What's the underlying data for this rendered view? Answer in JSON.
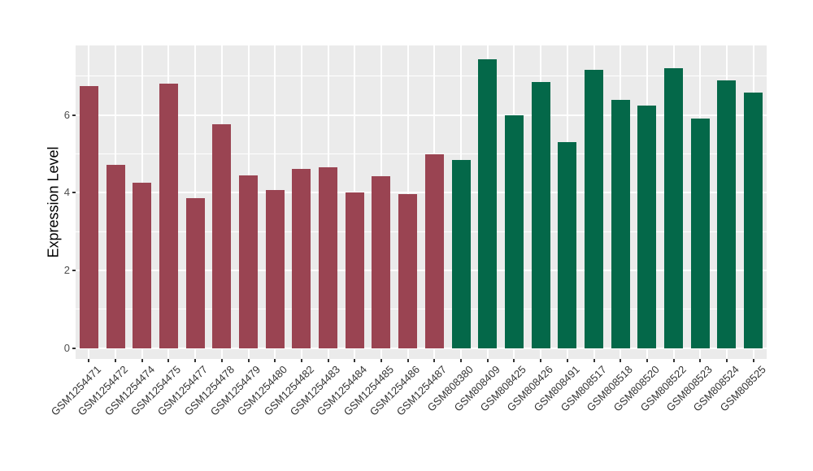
{
  "figure": {
    "background": "#FFFFFF",
    "panel_background": "#EBEBEB",
    "grid_color": "#FFFFFF"
  },
  "chart_data": {
    "type": "bar",
    "title": "",
    "xlabel": "",
    "ylabel": "Expression Level",
    "ylim": [
      0,
      7.8
    ],
    "yticks_major": [
      0,
      2,
      4,
      6
    ],
    "yticks_minor": [
      1,
      3,
      5,
      7
    ],
    "grid": "on",
    "legend": "none",
    "x_label_angle_deg": 45,
    "group_colors": {
      "maroon": "#9A4452",
      "green": "#046849"
    },
    "bars": [
      {
        "label": "GSM1254471",
        "value": 6.74,
        "group": "maroon"
      },
      {
        "label": "GSM1254472",
        "value": 4.72,
        "group": "maroon"
      },
      {
        "label": "GSM1254474",
        "value": 4.25,
        "group": "maroon"
      },
      {
        "label": "GSM1254475",
        "value": 6.82,
        "group": "maroon"
      },
      {
        "label": "GSM1254477",
        "value": 3.87,
        "group": "maroon"
      },
      {
        "label": "GSM1254478",
        "value": 5.76,
        "group": "maroon"
      },
      {
        "label": "GSM1254479",
        "value": 4.44,
        "group": "maroon"
      },
      {
        "label": "GSM1254480",
        "value": 4.06,
        "group": "maroon"
      },
      {
        "label": "GSM1254482",
        "value": 4.61,
        "group": "maroon"
      },
      {
        "label": "GSM1254483",
        "value": 4.66,
        "group": "maroon"
      },
      {
        "label": "GSM1254484",
        "value": 4.01,
        "group": "maroon"
      },
      {
        "label": "GSM1254485",
        "value": 4.43,
        "group": "maroon"
      },
      {
        "label": "GSM1254486",
        "value": 3.97,
        "group": "maroon"
      },
      {
        "label": "GSM1254487",
        "value": 5.0,
        "group": "maroon"
      },
      {
        "label": "GSM808380",
        "value": 4.85,
        "group": "green"
      },
      {
        "label": "GSM808409",
        "value": 7.43,
        "group": "green"
      },
      {
        "label": "GSM808425",
        "value": 6.0,
        "group": "green"
      },
      {
        "label": "GSM808426",
        "value": 6.86,
        "group": "green"
      },
      {
        "label": "GSM808491",
        "value": 5.3,
        "group": "green"
      },
      {
        "label": "GSM808517",
        "value": 7.16,
        "group": "green"
      },
      {
        "label": "GSM808518",
        "value": 6.4,
        "group": "green"
      },
      {
        "label": "GSM808520",
        "value": 6.25,
        "group": "green"
      },
      {
        "label": "GSM808522",
        "value": 7.21,
        "group": "green"
      },
      {
        "label": "GSM808523",
        "value": 5.92,
        "group": "green"
      },
      {
        "label": "GSM808524",
        "value": 6.9,
        "group": "green"
      },
      {
        "label": "GSM808525",
        "value": 6.58,
        "group": "green"
      }
    ]
  }
}
